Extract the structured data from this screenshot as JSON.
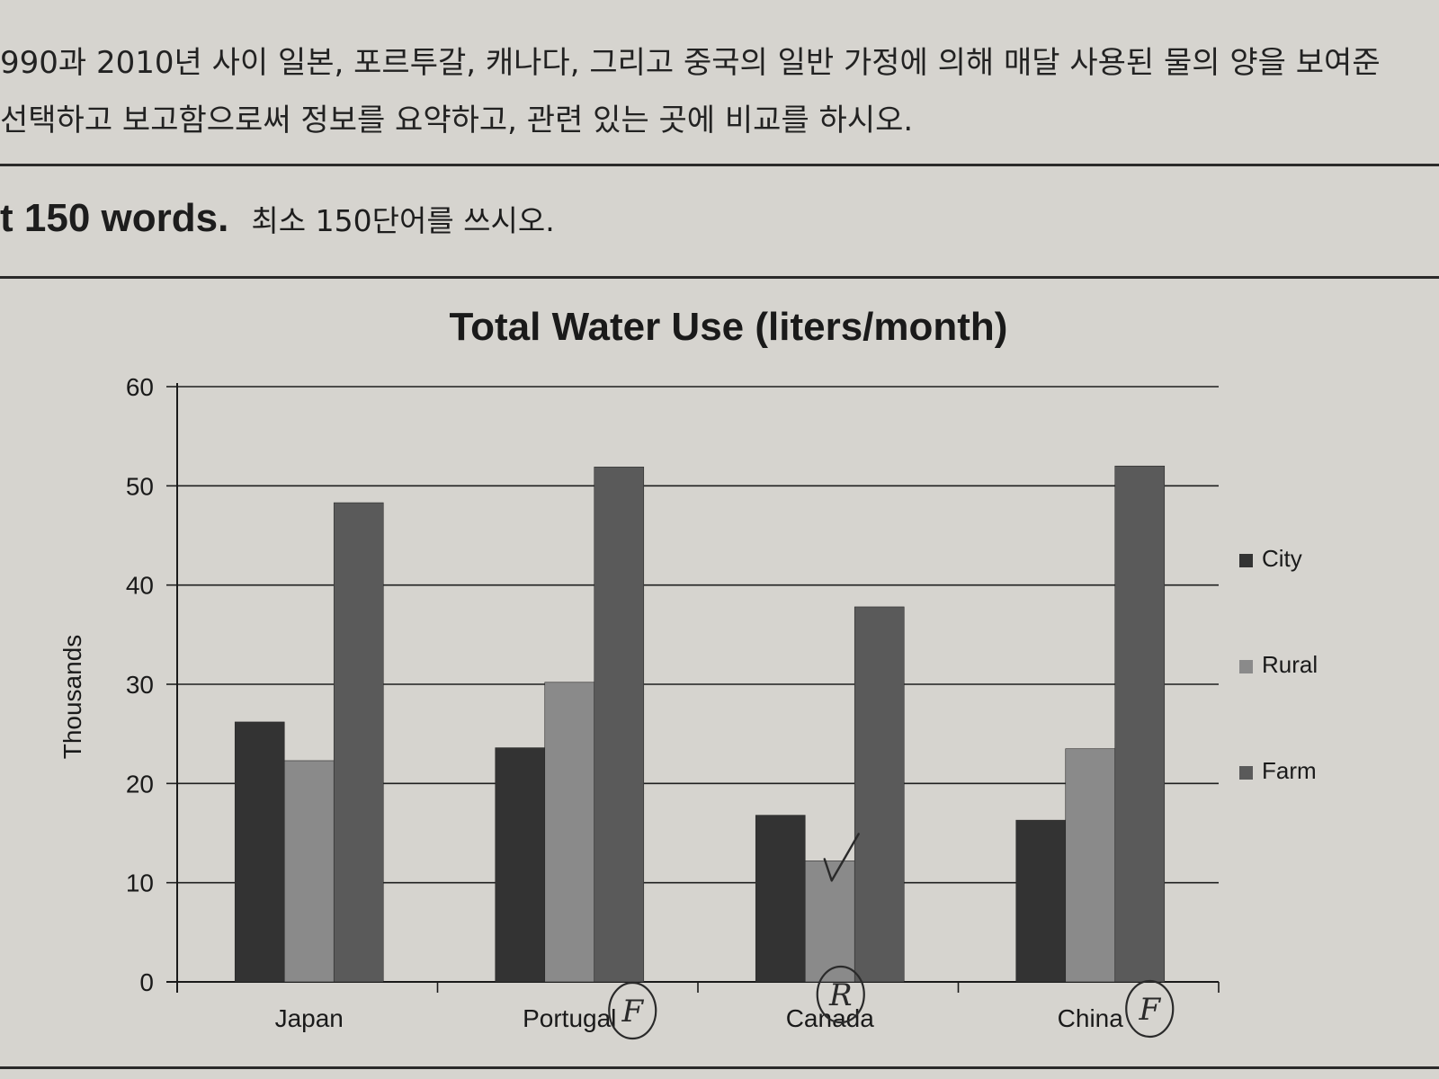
{
  "instructions": {
    "line1": "990과 2010년 사이 일본, 포르투갈, 캐나다, 그리고 중국의 일반 가정에 의해 매달 사용된 물의 양을 보여준",
    "line2": "선택하고 보고함으로써 정보를 요약하고, 관련 있는 곳에 비교를 하시오.",
    "word_limit_en": "t 150 words.",
    "word_limit_ko": "최소 150단어를 쓰시오."
  },
  "colors": {
    "paper": "#d6d4cf",
    "city": "#333333",
    "rural": "#8a8a8a",
    "farm": "#5a5a5a",
    "pen": "#2a2a2a"
  },
  "handwriting": {
    "portugal_mark": "F",
    "canada_mark": "R",
    "china_mark": "F",
    "canada_rural_mark": "check"
  },
  "chart_data": {
    "type": "bar",
    "title": "Total Water Use (liters/month)",
    "xlabel": "",
    "ylabel": "Thousands",
    "categories": [
      "Japan",
      "Portugal",
      "Canada",
      "China"
    ],
    "series": [
      {
        "name": "City",
        "values": [
          26.2,
          23.6,
          16.8,
          16.3
        ]
      },
      {
        "name": "Rural",
        "values": [
          22.3,
          30.2,
          12.2,
          23.5
        ]
      },
      {
        "name": "Farm",
        "values": [
          48.3,
          51.9,
          37.8,
          52.0
        ]
      }
    ],
    "ylim": [
      0,
      60
    ],
    "yticks": [
      0,
      10,
      20,
      30,
      40,
      50,
      60
    ],
    "grid": true,
    "legend_position": "right"
  }
}
